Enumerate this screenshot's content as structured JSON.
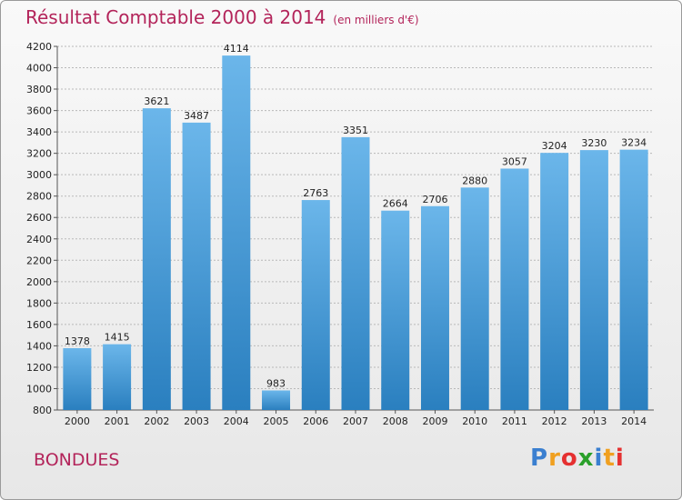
{
  "header": {
    "title": "Résultat Comptable 2000 à 2014",
    "unit": "(en milliers d'€)"
  },
  "footer": {
    "city": "BONDUES",
    "brand": {
      "letters": [
        "P",
        "r",
        "o",
        "x",
        "i",
        "t",
        "i"
      ],
      "colors": [
        "#3a7fd0",
        "#f0a020",
        "#e53030",
        "#2aa02a",
        "#3a7fd0",
        "#f0a020",
        "#e53030"
      ]
    }
  },
  "colors": {
    "bar_light": "#6bb6ea",
    "bar_dark": "#2a7fbf",
    "title": "#b3245a"
  },
  "chart_data": {
    "type": "bar",
    "title": "Résultat Comptable 2000 à 2014 (en milliers d'€)",
    "categories": [
      "2000",
      "2001",
      "2002",
      "2003",
      "2004",
      "2005",
      "2006",
      "2007",
      "2008",
      "2009",
      "2010",
      "2011",
      "2012",
      "2013",
      "2014"
    ],
    "values": [
      1378,
      1415,
      3621,
      3487,
      4114,
      983,
      2763,
      3351,
      2664,
      2706,
      2880,
      3057,
      3204,
      3230,
      3234
    ],
    "ylim": [
      800,
      4200
    ],
    "yticks": [
      800,
      1000,
      1200,
      1400,
      1600,
      1800,
      2000,
      2200,
      2400,
      2600,
      2800,
      3000,
      3200,
      3400,
      3600,
      3800,
      4000,
      4200
    ],
    "xlabel": "",
    "ylabel": "",
    "grid": true
  }
}
